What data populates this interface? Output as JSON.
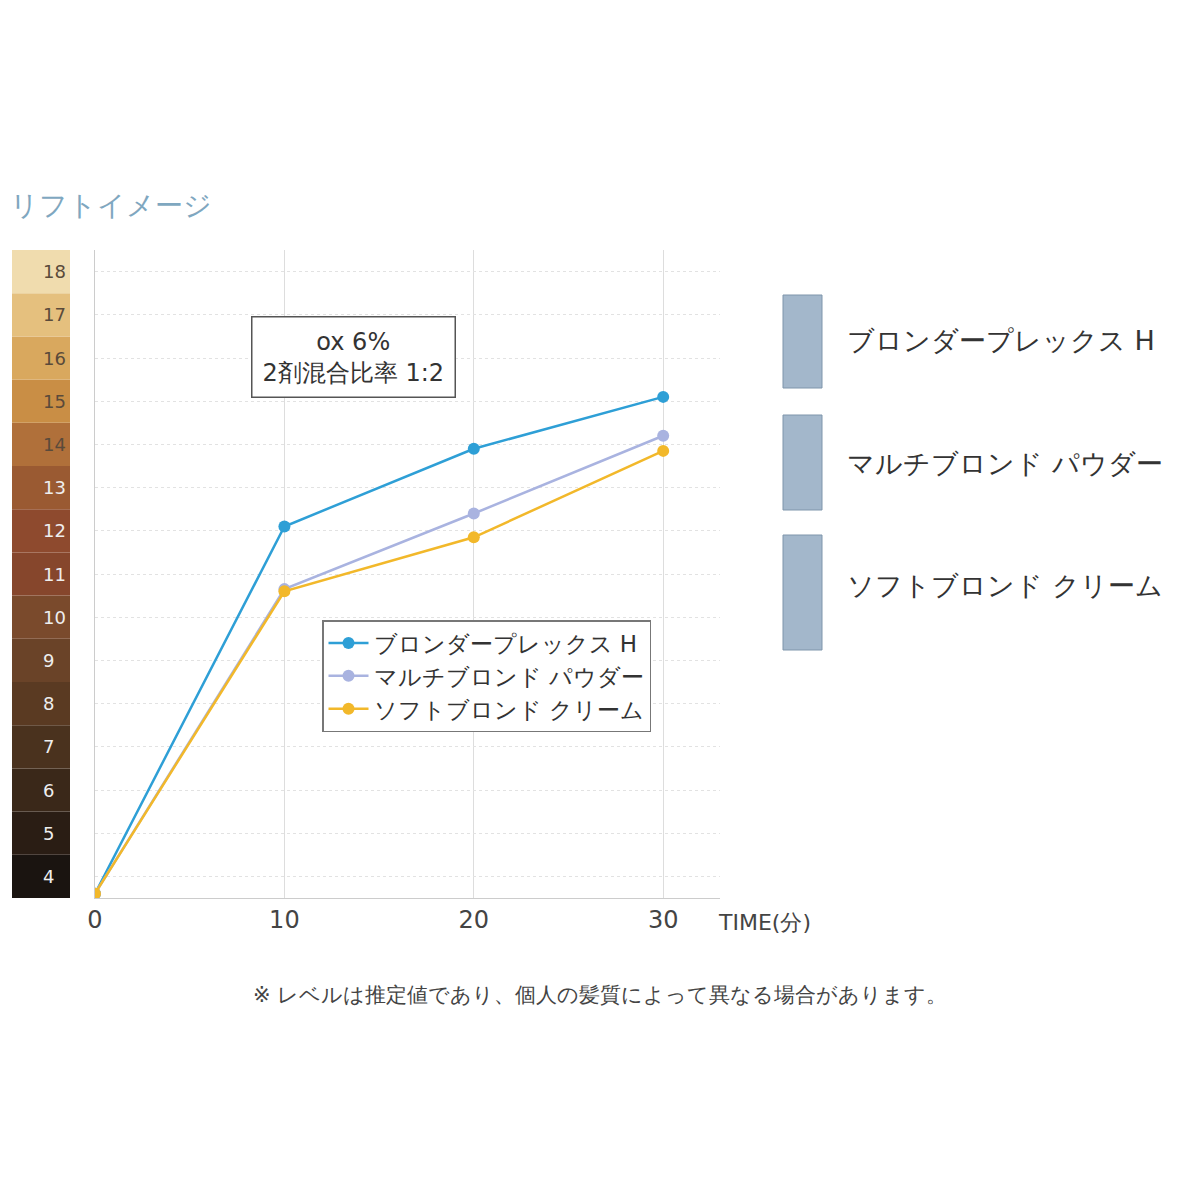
{
  "chart_data": {
    "type": "line",
    "title": "リフトイメージ",
    "x": [
      0,
      10,
      20,
      30
    ],
    "x_label": "TIME(分)",
    "series": [
      {
        "name": "ブロンダープレックス H",
        "color": "#2e9fd6",
        "values": [
          3.6,
          12.1,
          13.9,
          15.1
        ]
      },
      {
        "name": "マルチブロンド パウダー",
        "color": "#a9b3e0",
        "values": [
          3.6,
          10.65,
          12.4,
          14.2
        ]
      },
      {
        "name": "ソフトブロンド クリーム",
        "color": "#f2b82a",
        "values": [
          3.6,
          10.6,
          11.85,
          13.85
        ]
      }
    ],
    "xlim": [
      0,
      33
    ],
    "xticks": [
      0,
      10,
      20,
      30
    ],
    "ylim": [
      3.5,
      18.5
    ],
    "yticks": [
      4,
      5,
      6,
      7,
      8,
      9,
      10,
      11,
      12,
      13,
      14,
      15,
      16,
      17,
      18
    ],
    "grid": true,
    "legend": "right",
    "marker": "circle",
    "line_style": "solid",
    "box_text": [
      "ox 6%",
      "2剤混合比率 1:2"
    ],
    "side_labels": [
      "ブロンダープレックス H",
      "マルチブロンド パウダー",
      "ソフトブロンド クリーム"
    ],
    "note": "※ レベルは推定値であり、個人の髪質によって異なる場合があります。"
  }
}
